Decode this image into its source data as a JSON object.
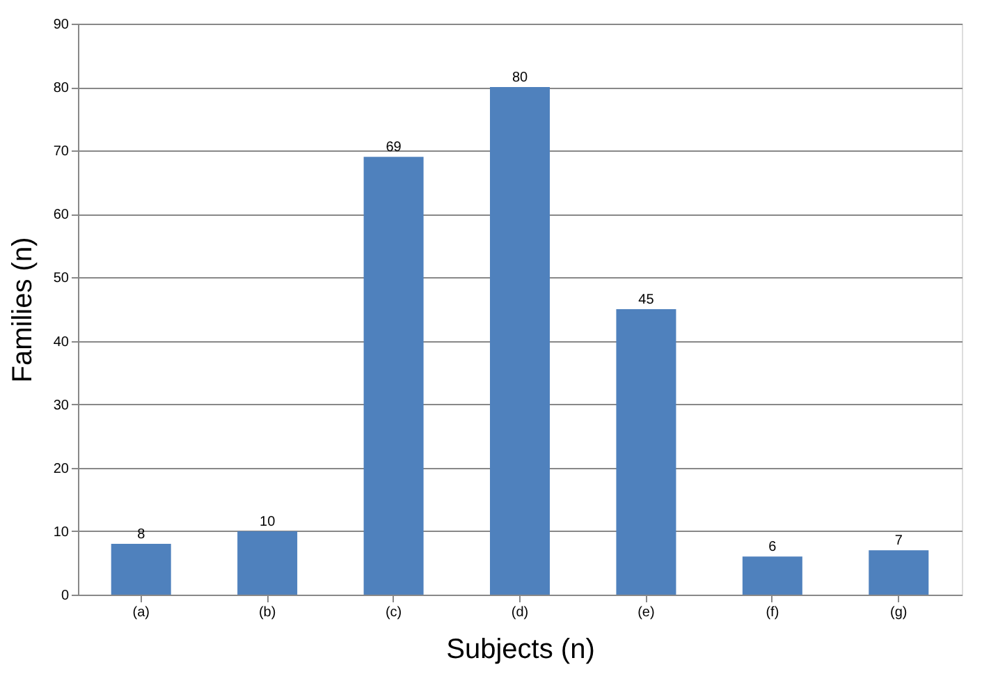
{
  "chart_data": {
    "type": "bar",
    "xlabel": "Subjects (n)",
    "ylabel": "Families (n)",
    "categories": [
      "(a)",
      "(b)",
      "(c)",
      "(d)",
      "(e)",
      "(f)",
      "(g)"
    ],
    "values": [
      8,
      10,
      69,
      80,
      45,
      6,
      7
    ],
    "color": "#4f81bd",
    "ylim": [
      0,
      90
    ],
    "yticks": [
      0,
      10,
      20,
      30,
      40,
      50,
      60,
      70,
      80,
      90
    ],
    "grid": "y",
    "data_labels": true
  }
}
